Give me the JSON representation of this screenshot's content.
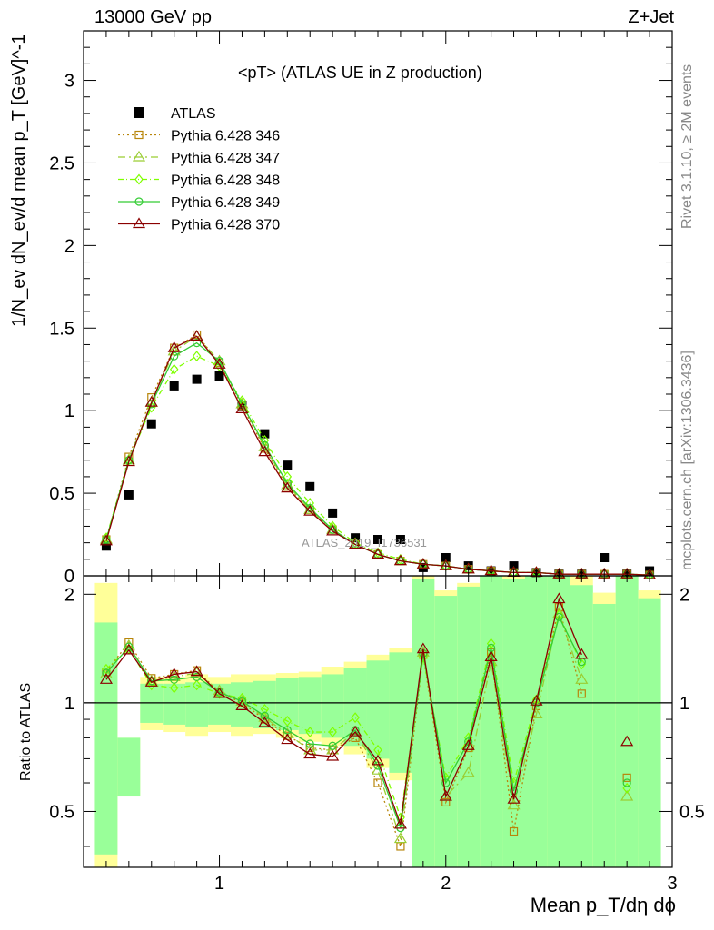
{
  "header": {
    "left": "13000 GeV pp",
    "right": "Z+Jet"
  },
  "side_labels": {
    "rivet": "Rivet 3.1.10, ≥ 2M events",
    "mcplots": "mcplots.cern.ch [arXiv:1306.3436]"
  },
  "watermark": "ATLAS_2019_I1736531",
  "xlabel": "Mean p_T/dη dϕ",
  "ratio_ylabel": "Ratio to ATLAS",
  "colors": {
    "data": "#000000",
    "band_inner": "#99ff99",
    "band_outer": "#ffff99",
    "s346": "#b8860b",
    "s347": "#9acd32",
    "s348": "#7fff00",
    "s349": "#33cc33",
    "s370": "#8b0000"
  },
  "chart_data": [
    {
      "type": "scatter",
      "title": "<pT> (ATLAS UE in Z production)",
      "ylabel": "1/N_ev dN_ev/d mean p_T [GeV]^-1",
      "xlim": [
        0.4,
        3.0
      ],
      "ylim": [
        0,
        3.3
      ],
      "xticks": [
        1,
        2,
        3
      ],
      "yticks": [
        0,
        0.5,
        1,
        1.5,
        2,
        2.5,
        3
      ],
      "legend_position": "top-left",
      "x": [
        0.5,
        0.6,
        0.7,
        0.8,
        0.9,
        1.0,
        1.1,
        1.2,
        1.3,
        1.4,
        1.5,
        1.6,
        1.7,
        1.8,
        1.9,
        2.0,
        2.1,
        2.2,
        2.3,
        2.4,
        2.5,
        2.6,
        2.7,
        2.8,
        2.9
      ],
      "series": [
        {
          "name": "ATLAS",
          "key": "data",
          "marker": "square",
          "values": [
            0.18,
            0.49,
            0.92,
            1.15,
            1.19,
            1.21,
            1.03,
            0.86,
            0.67,
            0.54,
            0.38,
            0.23,
            0.22,
            0.22,
            0.05,
            0.11,
            0.06,
            0.03,
            0.06,
            0.02,
            0.01,
            0.01,
            0.11,
            0.01,
            0.03
          ]
        },
        {
          "name": "Pythia 6.428 346",
          "key": "s346",
          "marker": "open-square",
          "dash": "2,3",
          "values": [
            0.22,
            0.72,
            1.08,
            1.38,
            1.46,
            1.29,
            1.03,
            0.77,
            0.54,
            0.4,
            0.28,
            0.19,
            0.13,
            0.09,
            0.07,
            0.06,
            0.04,
            0.03,
            0.02,
            0.02,
            0.01,
            0.01,
            0.01,
            0.01,
            0.005
          ]
        },
        {
          "name": "Pythia 6.428 347",
          "key": "s347",
          "marker": "open-triangle",
          "dash": "8,4,2,4",
          "values": [
            0.22,
            0.7,
            1.05,
            1.36,
            1.45,
            1.3,
            1.04,
            0.78,
            0.55,
            0.4,
            0.28,
            0.19,
            0.13,
            0.09,
            0.07,
            0.06,
            0.04,
            0.03,
            0.02,
            0.02,
            0.01,
            0.01,
            0.01,
            0.01,
            0.005
          ]
        },
        {
          "name": "Pythia 6.428 348",
          "key": "s348",
          "marker": "open-diamond",
          "dash": "6,3,1,3",
          "values": [
            0.23,
            0.7,
            1.02,
            1.25,
            1.33,
            1.27,
            1.06,
            0.82,
            0.6,
            0.44,
            0.3,
            0.2,
            0.14,
            0.1,
            0.07,
            0.06,
            0.04,
            0.03,
            0.02,
            0.02,
            0.01,
            0.01,
            0.01,
            0.01,
            0.005
          ]
        },
        {
          "name": "Pythia 6.428 349",
          "key": "s349",
          "marker": "open-circle",
          "dash": "",
          "values": [
            0.22,
            0.7,
            1.04,
            1.33,
            1.41,
            1.3,
            1.04,
            0.79,
            0.56,
            0.41,
            0.28,
            0.19,
            0.13,
            0.09,
            0.07,
            0.06,
            0.04,
            0.03,
            0.02,
            0.02,
            0.01,
            0.01,
            0.01,
            0.01,
            0.005
          ]
        },
        {
          "name": "Pythia 6.428 370",
          "key": "s370",
          "marker": "open-triangle",
          "dash": "",
          "values": [
            0.21,
            0.69,
            1.05,
            1.38,
            1.45,
            1.28,
            1.01,
            0.75,
            0.53,
            0.39,
            0.27,
            0.19,
            0.13,
            0.09,
            0.07,
            0.06,
            0.04,
            0.03,
            0.02,
            0.02,
            0.01,
            0.01,
            0.01,
            0.01,
            0.005
          ]
        }
      ]
    },
    {
      "type": "line",
      "ylabel": "Ratio to ATLAS",
      "xlim": [
        0.4,
        3.0
      ],
      "ylim": [
        0.35,
        2.25
      ],
      "xticks": [
        1,
        2,
        3
      ],
      "yticks": [
        0.5,
        1,
        2
      ],
      "bins": [
        [
          0.45,
          0.55
        ],
        [
          0.55,
          0.65
        ],
        [
          0.65,
          0.75
        ],
        [
          0.75,
          0.85
        ],
        [
          0.85,
          0.95
        ],
        [
          0.95,
          1.05
        ],
        [
          1.05,
          1.15
        ],
        [
          1.15,
          1.25
        ],
        [
          1.25,
          1.35
        ],
        [
          1.35,
          1.45
        ],
        [
          1.45,
          1.55
        ],
        [
          1.55,
          1.65
        ],
        [
          1.65,
          1.75
        ],
        [
          1.75,
          1.85
        ],
        [
          1.85,
          1.95
        ],
        [
          1.95,
          2.05
        ],
        [
          2.05,
          2.15
        ],
        [
          2.15,
          2.25
        ],
        [
          2.25,
          2.35
        ],
        [
          2.35,
          2.45
        ],
        [
          2.45,
          2.55
        ],
        [
          2.55,
          2.65
        ],
        [
          2.65,
          2.75
        ],
        [
          2.75,
          2.85
        ],
        [
          2.85,
          2.95
        ]
      ],
      "band_outer": [
        [
          0.35,
          2.15
        ],
        [
          0.55,
          0.8
        ],
        [
          0.84,
          1.18
        ],
        [
          0.83,
          1.18
        ],
        [
          0.81,
          1.2
        ],
        [
          0.83,
          1.18
        ],
        [
          0.81,
          1.2
        ],
        [
          0.82,
          1.2
        ],
        [
          0.8,
          1.21
        ],
        [
          0.78,
          1.22
        ],
        [
          0.76,
          1.26
        ],
        [
          0.72,
          1.3
        ],
        [
          0.66,
          1.36
        ],
        [
          0.61,
          1.42
        ],
        [
          0.35,
          2.25
        ],
        [
          0.35,
          2.05
        ],
        [
          0.35,
          2.15
        ],
        [
          0.35,
          2.25
        ],
        [
          0.35,
          2.25
        ],
        [
          0.35,
          2.25
        ],
        [
          0.35,
          2.25
        ],
        [
          0.35,
          2.25
        ],
        [
          0.35,
          2.02
        ],
        [
          0.35,
          2.25
        ],
        [
          0.35,
          2.05
        ]
      ],
      "band_inner": [
        [
          0.38,
          1.67
        ],
        [
          0.55,
          0.8
        ],
        [
          0.88,
          1.13
        ],
        [
          0.87,
          1.13
        ],
        [
          0.86,
          1.14
        ],
        [
          0.87,
          1.13
        ],
        [
          0.86,
          1.14
        ],
        [
          0.85,
          1.15
        ],
        [
          0.84,
          1.17
        ],
        [
          0.82,
          1.18
        ],
        [
          0.8,
          1.2
        ],
        [
          0.76,
          1.25
        ],
        [
          0.7,
          1.31
        ],
        [
          0.64,
          1.38
        ],
        [
          0.35,
          2.2
        ],
        [
          0.35,
          1.98
        ],
        [
          0.35,
          2.1
        ],
        [
          0.35,
          2.25
        ],
        [
          0.35,
          2.2
        ],
        [
          0.35,
          2.25
        ],
        [
          0.35,
          2.25
        ],
        [
          0.35,
          2.12
        ],
        [
          0.35,
          1.88
        ],
        [
          0.35,
          2.25
        ],
        [
          0.35,
          1.95
        ]
      ],
      "reference": 1,
      "series": [
        {
          "key": "s346",
          "marker": "open-square",
          "dash": "2,3",
          "values": [
            1.22,
            1.47,
            1.17,
            1.2,
            1.23,
            1.07,
            1.0,
            0.9,
            0.81,
            0.75,
            0.74,
            0.8,
            0.6,
            0.4,
            1.36,
            0.53,
            0.75,
            1.38,
            0.44,
            0.98,
            1.84,
            1.06,
            null,
            0.62,
            null
          ]
        },
        {
          "key": "s347",
          "marker": "open-triangle",
          "dash": "8,4,2,4",
          "values": [
            1.2,
            1.44,
            1.15,
            1.18,
            1.21,
            1.08,
            1.01,
            0.91,
            0.82,
            0.74,
            0.74,
            0.83,
            0.65,
            0.42,
            1.38,
            0.55,
            0.64,
            1.3,
            0.52,
            0.93,
            1.77,
            1.16,
            null,
            0.55,
            null
          ]
        },
        {
          "key": "s348",
          "marker": "open-diamond",
          "dash": "6,3,1,3",
          "values": [
            1.24,
            1.41,
            1.12,
            1.1,
            1.12,
            1.06,
            1.03,
            0.96,
            0.89,
            0.83,
            0.83,
            0.91,
            0.74,
            0.48,
            1.34,
            0.62,
            0.8,
            1.46,
            0.6,
            1.02,
            1.75,
            1.28,
            null,
            0.58,
            null
          ]
        },
        {
          "key": "s349",
          "marker": "open-circle",
          "dash": "",
          "values": [
            1.21,
            1.43,
            1.15,
            1.16,
            1.18,
            1.07,
            1.01,
            0.92,
            0.84,
            0.77,
            0.76,
            0.84,
            0.67,
            0.45,
            1.37,
            0.6,
            0.78,
            1.42,
            0.57,
            1.0,
            1.73,
            1.3,
            null,
            0.6,
            null
          ]
        },
        {
          "key": "s370",
          "marker": "open-triangle",
          "dash": "",
          "values": [
            1.16,
            1.4,
            1.14,
            1.2,
            1.22,
            1.06,
            0.98,
            0.88,
            0.79,
            0.72,
            0.71,
            0.83,
            0.69,
            0.46,
            1.41,
            0.55,
            0.76,
            1.34,
            0.54,
            1.01,
            1.94,
            1.36,
            null,
            0.78,
            null
          ]
        }
      ]
    }
  ]
}
